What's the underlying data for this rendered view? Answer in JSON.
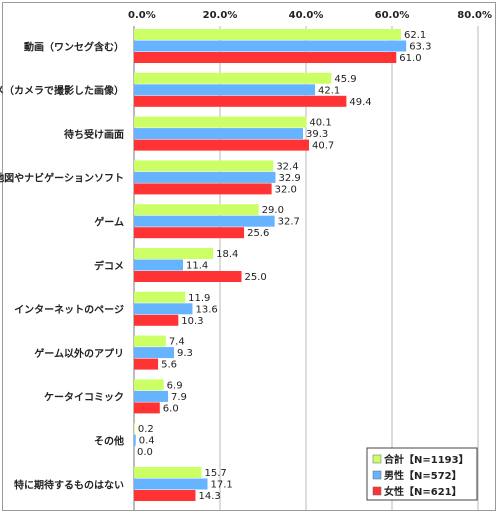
{
  "chart_data": {
    "type": "bar",
    "orientation": "horizontal",
    "title": "",
    "xlabel": "",
    "ylabel": "",
    "xlim": [
      0,
      80
    ],
    "ticks": [
      0,
      20,
      40,
      60,
      80
    ],
    "tick_labels": [
      "0.0%",
      "20.0%",
      "40.0%",
      "60.0%",
      "80.0%"
    ],
    "grid": true,
    "legend_position": "bottom-right",
    "categories": [
      "動画（ワンセグ含む）",
      "写メ（カメラで撮影した画像）",
      "待ち受け画面",
      "地図やナビゲーションソフト",
      "ゲーム",
      "デコメ",
      "インターネットのページ",
      "ゲーム以外のアプリ",
      "ケータイコミック",
      "その他",
      "特に期待するものはない"
    ],
    "series": [
      {
        "name": "合計【N=1193】",
        "color": "#ccff66",
        "values": [
          62.1,
          45.9,
          40.1,
          32.4,
          29.0,
          18.4,
          11.9,
          7.4,
          6.9,
          0.2,
          15.7
        ],
        "labels": [
          "62.1",
          "45.9",
          "40.1",
          "32.4",
          "29.0",
          "18.4",
          "11.9",
          "7.4",
          "6.9",
          "0.2",
          "15.7"
        ]
      },
      {
        "name": "男性【N=572】",
        "color": "#66b3ff",
        "values": [
          63.3,
          42.1,
          39.3,
          32.9,
          32.7,
          11.4,
          13.6,
          9.3,
          7.9,
          0.4,
          17.1
        ],
        "labels": [
          "63.3",
          "42.1",
          "39.3",
          "32.9",
          "32.7",
          "11.4",
          "13.6",
          "9.3",
          "7.9",
          "0.4",
          "17.1"
        ]
      },
      {
        "name": "女性【N=621】",
        "color": "#ff3333",
        "values": [
          61.0,
          49.4,
          40.7,
          32.0,
          25.6,
          25.0,
          10.3,
          5.6,
          6.0,
          0.0,
          14.3
        ],
        "labels": [
          "61.0",
          "49.4",
          "40.7",
          "32.0",
          "25.6",
          "25.0",
          "10.3",
          "5.6",
          "6.0",
          "0.0",
          "14.3"
        ]
      }
    ]
  }
}
